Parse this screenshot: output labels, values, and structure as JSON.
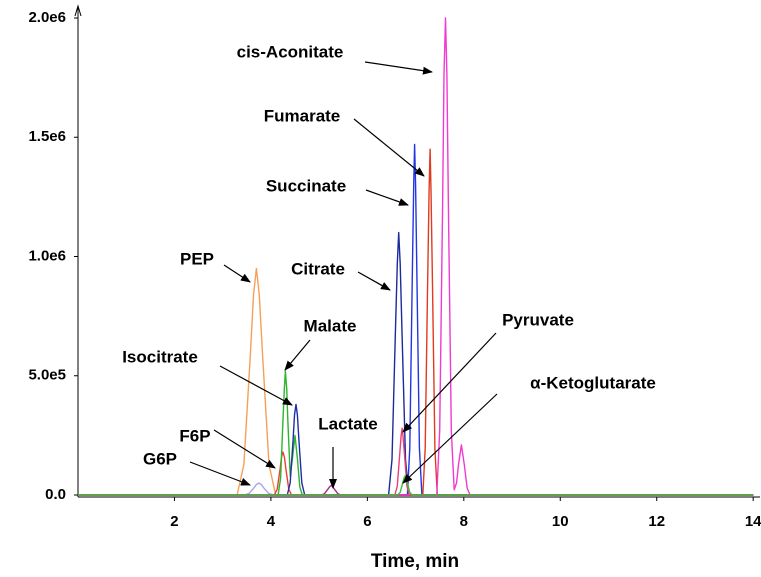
{
  "chart_data": {
    "type": "line",
    "xlabel": "Time, min",
    "xlim": [
      0,
      14.1
    ],
    "xticks": [
      2,
      4,
      6,
      8,
      10,
      12,
      14
    ],
    "ylim": [
      0,
      2000000
    ],
    "yticks": [
      {
        "value": 0,
        "label": "0.0"
      },
      {
        "value": 500000,
        "label": "5.0e5"
      },
      {
        "value": 1000000,
        "label": "1.0e6"
      },
      {
        "value": 1500000,
        "label": "1.5e6"
      },
      {
        "value": 2000000,
        "label": "2.0e6"
      }
    ],
    "series": [
      {
        "name": "PEP",
        "color": "#f5a05a",
        "x": [
          0,
          3.3,
          3.44,
          3.57,
          3.64,
          3.7,
          3.76,
          3.83,
          3.96,
          4.1,
          14
        ],
        "values": [
          0,
          0,
          128000,
          577000,
          838000,
          950000,
          838000,
          577000,
          128000,
          0,
          0
        ]
      },
      {
        "name": "G6P",
        "color": "#a9a4e8",
        "x": [
          0,
          3.45,
          3.55,
          3.65,
          3.7,
          3.75,
          3.8,
          3.85,
          3.95,
          4.05,
          14
        ],
        "values": [
          0,
          0,
          7000,
          30000,
          44000,
          50000,
          44000,
          30000,
          7000,
          0,
          0
        ]
      },
      {
        "name": "F6P",
        "color": "#e8403a",
        "x": [
          0,
          4.07,
          4.13,
          4.19,
          4.22,
          4.25,
          4.28,
          4.31,
          4.37,
          4.43,
          14
        ],
        "values": [
          0,
          0,
          24000,
          109000,
          159000,
          180000,
          159000,
          109000,
          24000,
          0,
          0
        ]
      },
      {
        "name": "Malate",
        "color": "#2db52d",
        "x": [
          0,
          4.15,
          4.2,
          4.25,
          4.28,
          4.3,
          4.33,
          4.35,
          4.4,
          4.45,
          4.5,
          4.55,
          4.6,
          4.65,
          14
        ],
        "values": [
          0,
          0,
          70000,
          316000,
          450000,
          520000,
          440000,
          316000,
          80000,
          158000,
          250000,
          152000,
          34000,
          0,
          0
        ]
      },
      {
        "name": "Isocitrate",
        "color": "#1f2fa8",
        "x": [
          0,
          4.34,
          4.4,
          4.46,
          4.49,
          4.52,
          4.55,
          4.58,
          4.64,
          4.7,
          14
        ],
        "values": [
          0,
          0,
          51000,
          231000,
          335000,
          380000,
          335000,
          231000,
          51000,
          0,
          0
        ]
      },
      {
        "name": "Lactate",
        "color": "#a0308a",
        "x": [
          0,
          5.04,
          5.11,
          5.18,
          5.22,
          5.25,
          5.28,
          5.32,
          5.39,
          5.46,
          14
        ],
        "values": [
          0,
          0,
          5000,
          24000,
          35000,
          40000,
          35000,
          24000,
          5000,
          0,
          0
        ]
      },
      {
        "name": "Citrate",
        "color": "#1c2a9c",
        "x": [
          0,
          6.44,
          6.51,
          6.58,
          6.62,
          6.65,
          6.68,
          6.72,
          6.79,
          6.86,
          14
        ],
        "values": [
          0,
          0,
          149000,
          668000,
          970000,
          1100000,
          970000,
          668000,
          149000,
          0,
          0
        ]
      },
      {
        "name": "Succinate",
        "color": "#2236e0",
        "x": [
          0,
          6.83,
          6.88,
          6.93,
          6.96,
          6.98,
          7.0,
          7.03,
          7.08,
          7.13,
          14
        ],
        "values": [
          0,
          0,
          198000,
          892000,
          1297000,
          1470000,
          1297000,
          892000,
          198000,
          0,
          0
        ]
      },
      {
        "name": "Fumarate",
        "color": "#e03a20",
        "x": [
          0,
          7.15,
          7.2,
          7.25,
          7.28,
          7.3,
          7.32,
          7.35,
          7.4,
          7.45,
          14
        ],
        "values": [
          0,
          0,
          196000,
          880000,
          1279000,
          1450000,
          1279000,
          880000,
          196000,
          0,
          0
        ]
      },
      {
        "name": "cis-Aconitate",
        "color": "#f03ad2",
        "x": [
          0,
          7.44,
          7.5,
          7.56,
          7.59,
          7.62,
          7.65,
          7.68,
          7.74,
          7.8,
          7.85,
          7.89,
          7.95,
          8.01,
          8.07,
          8.13,
          14
        ],
        "values": [
          0,
          0,
          270000,
          1214000,
          1765000,
          2000000,
          1765000,
          1214000,
          270000,
          22000,
          52000,
          127000,
          210000,
          127000,
          28000,
          0,
          0
        ]
      },
      {
        "name": "Pyruvate",
        "color": "#e8407a",
        "x": [
          0,
          6.57,
          6.62,
          6.67,
          6.7,
          6.72,
          6.74,
          6.77,
          6.82,
          6.87,
          14
        ],
        "values": [
          0,
          0,
          38000,
          170000,
          247000,
          280000,
          247000,
          170000,
          38000,
          0,
          0
        ]
      },
      {
        "name": "α-Ketoglutarate",
        "color": "#3cc03c",
        "x": [
          0,
          6.63,
          6.68,
          6.73,
          6.76,
          6.78,
          6.8,
          6.83,
          6.88,
          6.93,
          14
        ],
        "values": [
          0,
          0,
          11000,
          49000,
          71000,
          80000,
          71000,
          49000,
          11000,
          0,
          0
        ]
      }
    ]
  }
}
